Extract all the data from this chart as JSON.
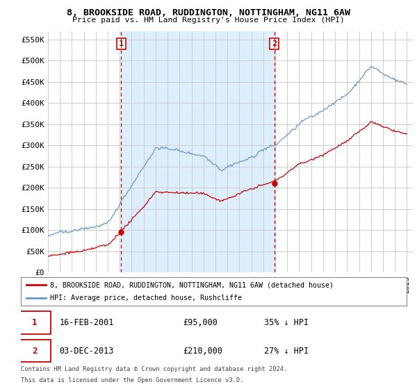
{
  "title": "8, BROOKSIDE ROAD, RUDDINGTON, NOTTINGHAM, NG11 6AW",
  "subtitle": "Price paid vs. HM Land Registry's House Price Index (HPI)",
  "ylabel_ticks": [
    "£0",
    "£50K",
    "£100K",
    "£150K",
    "£200K",
    "£250K",
    "£300K",
    "£350K",
    "£400K",
    "£450K",
    "£500K",
    "£550K"
  ],
  "ylabel_values": [
    0,
    50000,
    100000,
    150000,
    200000,
    250000,
    300000,
    350000,
    400000,
    450000,
    500000,
    550000
  ],
  "ylim": [
    0,
    570000
  ],
  "xlim_start": 1995.0,
  "xlim_end": 2025.5,
  "legend_line1": "8, BROOKSIDE ROAD, RUDDINGTON, NOTTINGHAM, NG11 6AW (detached house)",
  "legend_line2": "HPI: Average price, detached house, Rushcliffe",
  "red_color": "#cc0000",
  "blue_color": "#6699cc",
  "shade_color": "#ddeeff",
  "point1_x": 2001.12,
  "point1_y": 95000,
  "point2_x": 2013.92,
  "point2_y": 210000,
  "point1_date": "16-FEB-2001",
  "point1_price": "£95,000",
  "point1_hpi": "35% ↓ HPI",
  "point2_date": "03-DEC-2013",
  "point2_price": "£210,000",
  "point2_hpi": "27% ↓ HPI",
  "footnote1": "Contains HM Land Registry data © Crown copyright and database right 2024.",
  "footnote2": "This data is licensed under the Open Government Licence v3.0.",
  "background_color": "#ffffff",
  "grid_color": "#cccccc"
}
